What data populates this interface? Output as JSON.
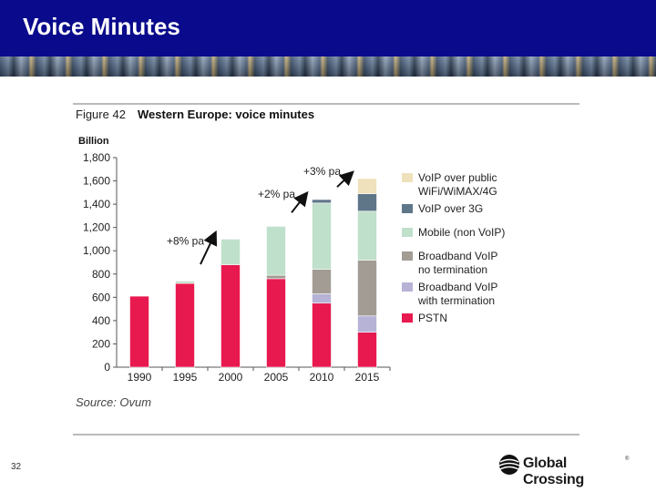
{
  "slide": {
    "title": "Voice Minutes",
    "page_number": "32",
    "logo_text": "Global Crossing",
    "logo_reg": "®"
  },
  "colors": {
    "header": "#0a0a8c",
    "pstn": "#e8194f",
    "bb_with_term": "#b7b3d6",
    "bb_no_term": "#a29c95",
    "mobile": "#bfe0cb",
    "voip_3g": "#5f7689",
    "voip_public": "#efe1bc"
  },
  "chart_data": {
    "type": "bar",
    "stacked": true,
    "title": "Western Europe: voice minutes",
    "figure_label": "Figure 42",
    "ylabel": "Billion",
    "xlabel": "",
    "source": "Source: Ovum",
    "ylim": [
      0,
      1800
    ],
    "yticks": [
      0,
      200,
      400,
      600,
      800,
      "1,000",
      "1,200",
      "1,400",
      "1,600",
      "1,800"
    ],
    "categories": [
      "1990",
      "1995",
      "2000",
      "2005",
      "2010",
      "2015"
    ],
    "series": [
      {
        "name": "PSTN",
        "color": "#e8194f",
        "values": [
          610,
          720,
          880,
          760,
          550,
          300
        ]
      },
      {
        "name": "Broadband VoIP with termination",
        "color": "#b7b3d6",
        "values": [
          0,
          0,
          0,
          0,
          80,
          140
        ]
      },
      {
        "name": "Broadband VoIP no termination",
        "color": "#a29c95",
        "values": [
          0,
          0,
          0,
          30,
          210,
          480
        ]
      },
      {
        "name": "Mobile (non VoIP)",
        "color": "#bfe0cb",
        "values": [
          0,
          20,
          220,
          420,
          570,
          420
        ]
      },
      {
        "name": "VoIP over 3G",
        "color": "#5f7689",
        "values": [
          0,
          0,
          0,
          0,
          30,
          150
        ]
      },
      {
        "name": "VoIP over public WiFi/WiMAX/4G",
        "color": "#efe1bc",
        "values": [
          0,
          0,
          0,
          0,
          0,
          130
        ]
      }
    ],
    "legend": [
      {
        "lines": [
          "VoIP over public",
          "WiFi/WiMAX/4G"
        ],
        "color": "#efe1bc"
      },
      {
        "lines": [
          "VoIP over 3G"
        ],
        "color": "#5f7689"
      },
      {
        "lines": [
          "Mobile (non VoIP)"
        ],
        "color": "#bfe0cb"
      },
      {
        "lines": [
          "Broadband VoIP",
          "no termination"
        ],
        "color": "#a29c95"
      },
      {
        "lines": [
          "Broadband VoIP",
          "with termination"
        ],
        "color": "#b7b3d6"
      },
      {
        "lines": [
          "PSTN"
        ],
        "color": "#e8194f"
      }
    ],
    "annotations": [
      {
        "text": "+8% pa",
        "from_category": "1995"
      },
      {
        "text": "+2% pa",
        "from_category": "2005"
      },
      {
        "text": "+3% pa",
        "from_category": "2010"
      }
    ],
    "legend_position": "right"
  }
}
